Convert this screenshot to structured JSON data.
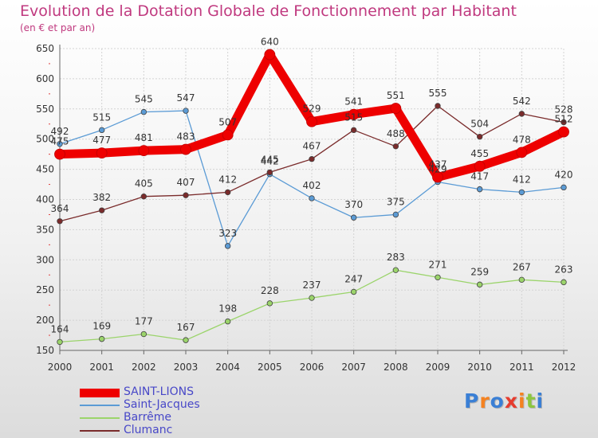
{
  "header": {
    "title": "Evolution de la Dotation Globale de Fonctionnement par Habitant",
    "subtitle": "(en € et par an)"
  },
  "logo": {
    "text": "Proxiti",
    "colors": [
      "#3a7fd5",
      "#f58220",
      "#3a7fd5",
      "#e63c2e",
      "#f58220",
      "#8cc63f",
      "#3a7fd5"
    ]
  },
  "chart_data": {
    "type": "line",
    "title": "Evolution de la Dotation Globale de Fonctionnement par Habitant",
    "subtitle": "(en € et par an)",
    "xlabel": "",
    "ylabel": "",
    "x": [
      2000,
      2001,
      2002,
      2003,
      2004,
      2005,
      2006,
      2007,
      2008,
      2009,
      2010,
      2011,
      2012
    ],
    "ylim": [
      150,
      650
    ],
    "yticks": [
      150,
      200,
      250,
      300,
      350,
      400,
      450,
      500,
      550,
      600,
      650
    ],
    "grid": true,
    "legend_position": "bottom-left",
    "series": [
      {
        "name": "SAINT-LIONS",
        "color": "#ee0000",
        "values": [
          475,
          477,
          481,
          483,
          507,
          640,
          529,
          541,
          551,
          437,
          455,
          478,
          512
        ]
      },
      {
        "name": "Saint-Jacques",
        "color": "#5b9bd5",
        "values": [
          492,
          515,
          545,
          547,
          323,
          442,
          402,
          370,
          375,
          429,
          417,
          412,
          420
        ]
      },
      {
        "name": "Barrême",
        "color": "#9bd46b",
        "values": [
          164,
          169,
          177,
          167,
          198,
          228,
          237,
          247,
          283,
          271,
          259,
          267,
          263
        ]
      },
      {
        "name": "Clumanc",
        "color": "#7a2b2b",
        "values": [
          364,
          382,
          405,
          407,
          412,
          445,
          467,
          515,
          488,
          555,
          504,
          542,
          528
        ]
      }
    ]
  }
}
